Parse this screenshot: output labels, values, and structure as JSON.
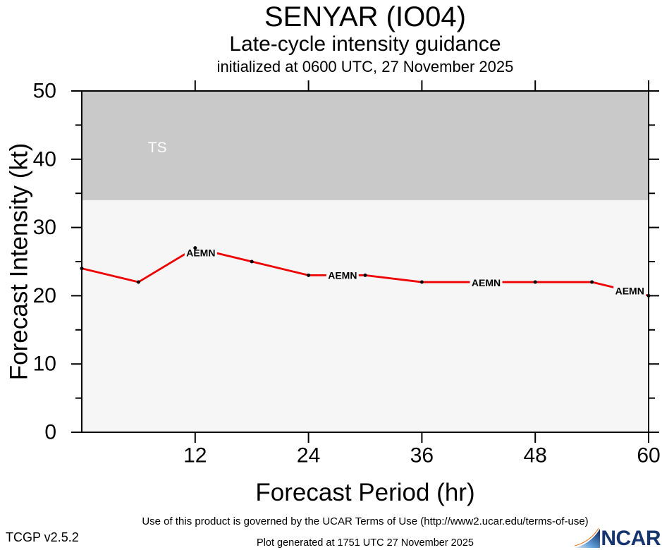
{
  "header": {
    "title": "SENYAR (IO04)",
    "subtitle": "Late-cycle intensity guidance",
    "init_line": "initialized at 0600 UTC, 27 November 2025"
  },
  "chart_data": {
    "type": "line",
    "title": "SENYAR (IO04) Late-cycle intensity guidance",
    "xlabel": "Forecast Period (hr)",
    "ylabel": "Forecast Intensity (kt)",
    "xlim": [
      0,
      60
    ],
    "ylim": [
      0,
      50
    ],
    "x_major_ticks": [
      12,
      24,
      36,
      48,
      60
    ],
    "y_major_ticks": [
      0,
      10,
      20,
      30,
      40,
      50
    ],
    "y_minor_ticks": [
      5,
      15,
      25,
      35,
      45
    ],
    "grid": false,
    "legend_position": "none",
    "plot_bg": "#f6f6f6",
    "series": [
      {
        "name": "AEMN",
        "color": "#ee0000",
        "marker_color": "#000000",
        "x": [
          0,
          6,
          12,
          18,
          24,
          30,
          36,
          42,
          48,
          54,
          60
        ],
        "values": [
          24,
          22,
          27,
          25,
          23,
          23,
          22,
          22,
          22,
          22,
          20
        ],
        "hidden_marker_x": [
          42
        ],
        "labels": [
          {
            "text": "AEMN",
            "x": 12.6,
            "y": 26.3
          },
          {
            "text": "AEMN",
            "x": 27.6,
            "y": 23.0
          },
          {
            "text": "AEMN",
            "x": 42.8,
            "y": 21.9
          },
          {
            "text": "AEMN",
            "x": 58.0,
            "y": 20.7
          }
        ]
      }
    ],
    "bands": [
      {
        "label": "TS",
        "from": 34,
        "to": 50,
        "color": "#c9c9c9",
        "label_x": 8.0,
        "label_y": 41.7,
        "label_color": "#fdfdfd"
      }
    ]
  },
  "footer": {
    "terms": "Use of this product is governed by the UCAR Terms of Use (http://www2.ucar.edu/terms-of-use)",
    "version": "TCGP v2.5.2",
    "generated": "Plot generated at 1751 UTC   27 November 2025",
    "logo_text": "NCAR",
    "logo_navy": "#16356e"
  }
}
